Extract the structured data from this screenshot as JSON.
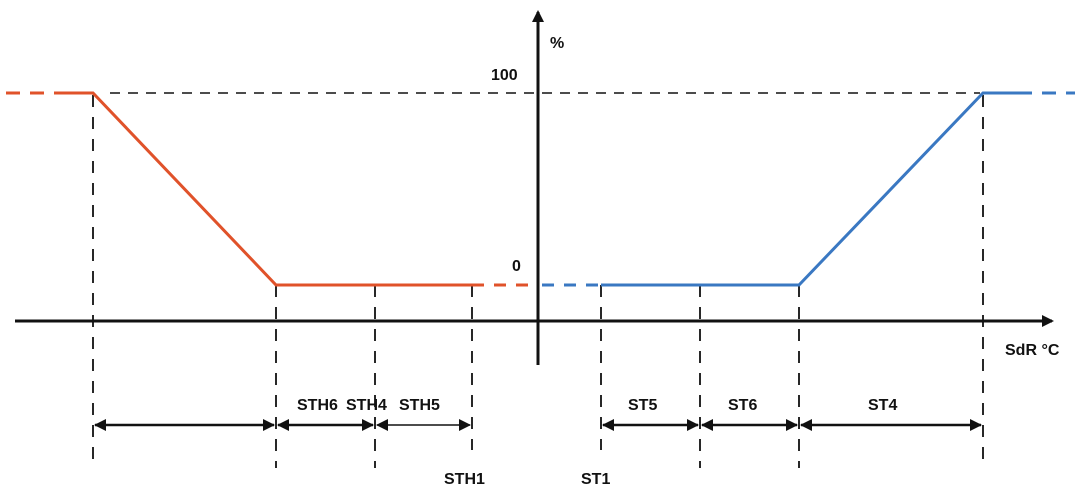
{
  "axes": {
    "y_label": "%",
    "x_label": "SdR °C",
    "y_tick_top": "100",
    "y_tick_bottom": "0"
  },
  "heating_spans": {
    "sth6": "STH6",
    "sth4": "STH4",
    "sth5": "STH5"
  },
  "cooling_spans": {
    "st5": "ST5",
    "st6": "ST6",
    "st4": "ST4"
  },
  "thresholds": {
    "sth1": "STH1",
    "st1": "ST1"
  },
  "colors": {
    "heating": "#e0522a",
    "cooling": "#3a78c2",
    "axes": "#111111",
    "guide": "#111111"
  }
}
